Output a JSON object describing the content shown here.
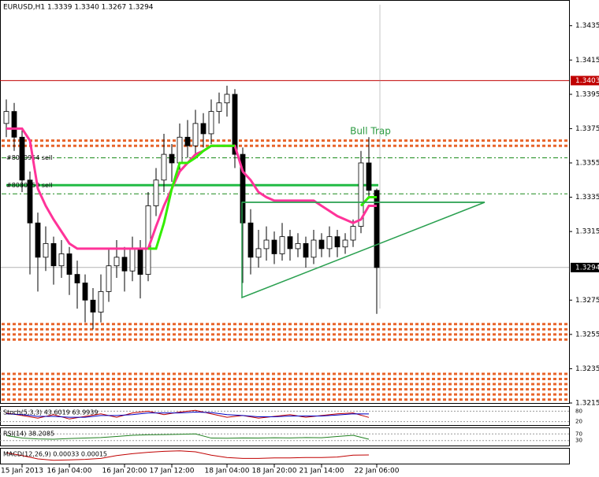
{
  "chart_data": {
    "type": "candlestick",
    "title": "EURUSD,H1  1.3339 1.3340 1.3267 1.3294",
    "annotation": "Bull Trap",
    "categories": [
      null,
      null,
      "15 Jan 2013",
      null,
      null,
      null,
      null,
      null,
      "16 Jan 04:00",
      null,
      null,
      null,
      null,
      null,
      null,
      "16 Jan 20:00",
      null,
      null,
      null,
      null,
      null,
      "17 Jan 12:00",
      null,
      null,
      null,
      null,
      null,
      null,
      "18 Jan 04:00",
      null,
      null,
      null,
      null,
      null,
      "18 Jan 20:00",
      null,
      null,
      null,
      null,
      null,
      "21 Jan 14:00",
      null,
      null,
      null,
      null,
      null,
      null,
      "22 Jan 06:00"
    ],
    "open": [
      1.3378,
      1.3385,
      1.337,
      1.3345,
      1.332,
      1.33,
      1.3308,
      1.3295,
      1.3302,
      1.329,
      1.3285,
      1.3275,
      1.3268,
      1.328,
      1.3295,
      1.33,
      1.3292,
      1.3305,
      1.329,
      1.333,
      1.3345,
      1.336,
      1.3355,
      1.337,
      1.3365,
      1.3378,
      1.3372,
      1.3385,
      1.339,
      1.3395,
      1.336,
      1.332,
      1.33,
      1.3305,
      1.331,
      1.3302,
      1.3312,
      1.3305,
      1.3308,
      1.33,
      1.331,
      1.3305,
      1.3312,
      1.3306,
      1.331,
      1.3318,
      1.3355,
      1.3339
    ],
    "high": [
      1.3392,
      1.339,
      1.3375,
      1.335,
      1.3326,
      1.3318,
      1.3312,
      1.331,
      1.3306,
      1.3298,
      1.329,
      1.3282,
      1.329,
      1.3305,
      1.331,
      1.3306,
      1.3312,
      1.331,
      1.3338,
      1.3352,
      1.3372,
      1.3366,
      1.3378,
      1.338,
      1.3386,
      1.3384,
      1.3392,
      1.3396,
      1.34,
      1.3398,
      1.3364,
      1.3328,
      1.3316,
      1.3318,
      1.3315,
      1.332,
      1.3316,
      1.3314,
      1.3312,
      1.3316,
      1.3314,
      1.3318,
      1.3316,
      1.3314,
      1.3322,
      1.3362,
      1.337,
      1.334
    ],
    "low": [
      1.337,
      1.3362,
      1.3338,
      1.329,
      1.328,
      1.3292,
      1.3284,
      1.3288,
      1.3278,
      1.327,
      1.3262,
      1.3258,
      1.3262,
      1.3274,
      1.3288,
      1.328,
      1.3286,
      1.3276,
      1.3286,
      1.3324,
      1.3338,
      1.3344,
      1.335,
      1.3358,
      1.336,
      1.3364,
      1.3366,
      1.3378,
      1.3382,
      1.3352,
      1.3285,
      1.329,
      1.3294,
      1.3298,
      1.3296,
      1.3298,
      1.3298,
      1.33,
      1.3294,
      1.3296,
      1.33,
      1.33,
      1.33,
      1.3302,
      1.3306,
      1.3314,
      1.3334,
      1.3267
    ],
    "close": [
      1.3385,
      1.337,
      1.3345,
      1.332,
      1.33,
      1.3308,
      1.3295,
      1.3302,
      1.329,
      1.3285,
      1.3275,
      1.3268,
      1.328,
      1.3295,
      1.33,
      1.3292,
      1.3305,
      1.329,
      1.333,
      1.3345,
      1.336,
      1.3355,
      1.337,
      1.3365,
      1.3378,
      1.3372,
      1.3385,
      1.339,
      1.3395,
      1.336,
      1.332,
      1.33,
      1.3305,
      1.331,
      1.3302,
      1.3312,
      1.3305,
      1.3308,
      1.33,
      1.331,
      1.3305,
      1.3312,
      1.3306,
      1.331,
      1.3318,
      1.3355,
      1.3339,
      1.3294
    ],
    "series": [
      {
        "color": "#ff3399",
        "values": [
          1.3375,
          1.3375,
          1.3375,
          1.3368,
          1.334,
          1.333,
          1.3322,
          1.3315,
          1.3308,
          1.3305,
          1.3305,
          1.3305,
          1.3305,
          1.3305,
          1.3305,
          1.3305,
          1.3305,
          1.3305,
          1.3305,
          1.3318,
          1.333,
          1.334,
          1.335,
          1.3355,
          1.336,
          1.3362,
          1.3365,
          1.3365,
          1.3365,
          1.3365,
          1.335,
          1.3345,
          1.3338,
          1.3335,
          1.3333,
          1.3333,
          1.3333,
          1.3333,
          1.3333,
          1.3333,
          1.333,
          1.3327,
          1.3324,
          1.3322,
          1.332,
          1.3322,
          1.333,
          1.333
        ]
      },
      {
        "color": "#33ee00",
        "values": [
          null,
          null,
          null,
          null,
          null,
          null,
          null,
          null,
          null,
          null,
          null,
          null,
          null,
          null,
          null,
          null,
          null,
          null,
          1.3305,
          1.3305,
          1.332,
          1.334,
          1.3355,
          1.3355,
          1.3358,
          1.3362,
          1.3365,
          1.3365,
          1.3365,
          1.3365,
          null,
          null,
          null,
          null,
          null,
          null,
          null,
          null,
          null,
          null,
          null,
          null,
          null,
          null,
          null,
          1.333,
          1.3335,
          1.3335
        ]
      }
    ],
    "ylim": [
      1.3215,
      1.345
    ],
    "yticks": [
      1.3435,
      1.3415,
      1.3395,
      1.3375,
      1.3355,
      1.3335,
      1.3315,
      1.3275,
      1.3255,
      1.3235,
      1.3215
    ],
    "price_markers": [
      {
        "value": 1.3403,
        "color": "#c00000"
      },
      {
        "value": 1.3294,
        "color": "#000000"
      }
    ],
    "orders": [
      {
        "label": "#8080954 sell",
        "value": 1.3358
      },
      {
        "label": "#8080950 sell",
        "value": 1.3342
      }
    ],
    "green_levels": [
      1.3358,
      1.3337
    ],
    "support_line": 1.3342,
    "orange_levels": [
      1.3368,
      1.3365,
      1.3261,
      1.3258,
      1.3255,
      1.3252,
      1.3232,
      1.3229,
      1.3226,
      1.3223,
      1.322,
      1.3217
    ],
    "indicators": [
      {
        "label": "Stoch(5,3,3) 43.6019 63.9939",
        "ylim": [
          0,
          100
        ],
        "yticks": [
          80,
          20
        ],
        "series": [
          {
            "color": "#c00000",
            "values": [
              70,
              55,
              40,
              60,
              35,
              50,
              65,
              45,
              70,
              80,
              60,
              75,
              85,
              65,
              45,
              55,
              40,
              50,
              60,
              45,
              55,
              65,
              70,
              44
            ]
          },
          {
            "color": "#0000c0",
            "values": [
              65,
              60,
              50,
              50,
              45,
              45,
              55,
              55,
              60,
              70,
              70,
              70,
              75,
              72,
              60,
              55,
              48,
              48,
              52,
              52,
              52,
              58,
              65,
              64
            ]
          }
        ]
      },
      {
        "label": "RSI(14) 38.2085",
        "ylim": [
          0,
          100
        ],
        "yticks": [
          70,
          30
        ],
        "series": [
          {
            "color": "#208020",
            "values": [
              60,
              45,
              40,
              38,
              42,
              45,
              48,
              55,
              62,
              65,
              66,
              68,
              70,
              45,
              44,
              46,
              45,
              47,
              46,
              48,
              47,
              55,
              62,
              38
            ]
          }
        ]
      },
      {
        "label": "MACD(12,26,9) 0.00033 0.00015",
        "ylim": [
          -0.0015,
          0.0015
        ],
        "yticks": [],
        "series": [
          {
            "color": "#c00000",
            "values": [
              0.0008,
              0.0002,
              -0.0005,
              -0.0008,
              -0.0007,
              -0.0006,
              -0.0004,
              0.0002,
              0.0006,
              0.0009,
              0.0011,
              0.0012,
              0.001,
              0.0003,
              -0.0002,
              -0.0004,
              -0.0004,
              -0.0003,
              -0.0003,
              -0.0002,
              -0.0002,
              -0.0001,
              0.0003,
              0.00033
            ]
          }
        ]
      }
    ]
  }
}
